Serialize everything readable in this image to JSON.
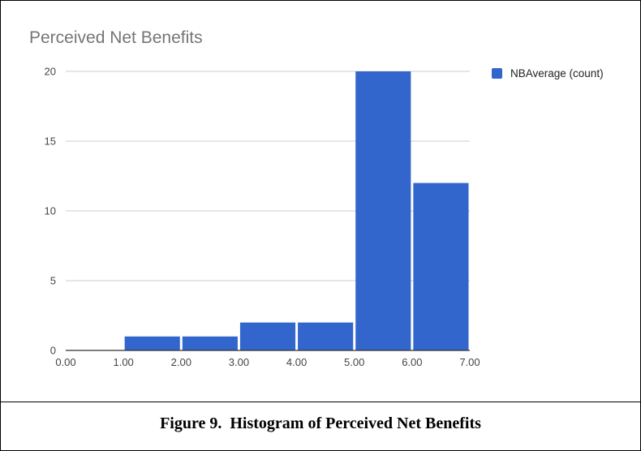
{
  "caption": "Figure 9.  Histogram of Perceived Net Benefits",
  "colors": {
    "bar": "#3366cc",
    "grid": "#cccccc",
    "axis": "#333333"
  },
  "chart_data": {
    "type": "bar",
    "title": "Perceived Net Benefits",
    "xlabel": "",
    "ylabel": "",
    "legend": {
      "position": "right",
      "entries": [
        "NBAverage  (count)"
      ]
    },
    "grid": true,
    "xlim": [
      0,
      7
    ],
    "ylim": [
      0,
      20
    ],
    "x_ticks": [
      "0.00",
      "1.00",
      "2.00",
      "3.00",
      "4.00",
      "5.00",
      "6.00",
      "7.00"
    ],
    "y_ticks": [
      "0",
      "5",
      "10",
      "15",
      "20"
    ],
    "bins": [
      {
        "from": 1,
        "to": 2,
        "count": 1
      },
      {
        "from": 2,
        "to": 3,
        "count": 1
      },
      {
        "from": 3,
        "to": 4,
        "count": 2
      },
      {
        "from": 4,
        "to": 5,
        "count": 2
      },
      {
        "from": 5,
        "to": 6,
        "count": 20
      },
      {
        "from": 6,
        "to": 7,
        "count": 12
      }
    ],
    "series": [
      {
        "name": "NBAverage  (count)",
        "values": [
          1,
          1,
          2,
          2,
          20,
          12
        ]
      }
    ]
  }
}
